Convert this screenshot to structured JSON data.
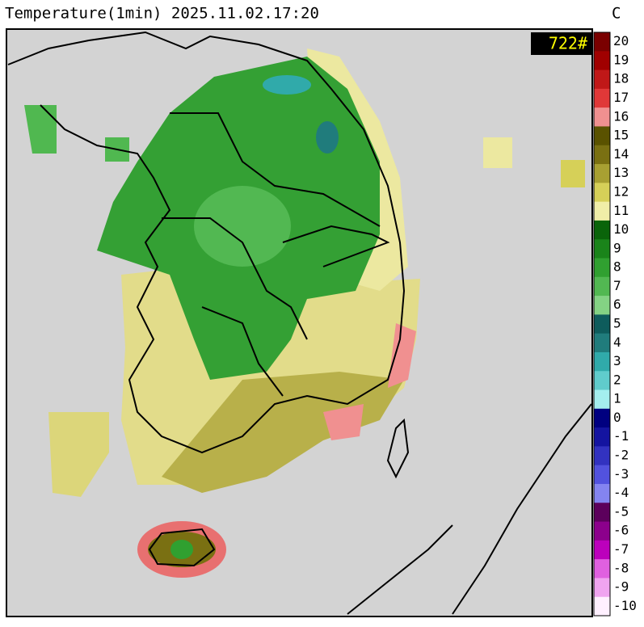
{
  "title": "Temperature(1min) 2025.11.02.17:20",
  "badge": "722#",
  "legend": {
    "unit": "C",
    "labels": [
      20,
      19,
      18,
      17,
      16,
      15,
      14,
      13,
      12,
      11,
      10,
      9,
      8,
      7,
      6,
      5,
      4,
      3,
      2,
      1,
      0,
      -1,
      -2,
      -3,
      -4,
      -5,
      -6,
      -7,
      -8,
      -9,
      -10
    ],
    "colors": [
      "#7a0000",
      "#a00000",
      "#c01818",
      "#e03838",
      "#f09090",
      "#5a5200",
      "#7a7012",
      "#a8a032",
      "#d6d058",
      "#f0eea8",
      "#0a640a",
      "#1a841a",
      "#30a030",
      "#52b852",
      "#84d284",
      "#0e5c5c",
      "#207c7c",
      "#30aaaa",
      "#60cccc",
      "#a4eeee",
      "#000080",
      "#1414a0",
      "#3232c0",
      "#5252de",
      "#8484f0",
      "#5c005c",
      "#8c008c",
      "#bc00bc",
      "#e060e0",
      "#f0a4f0",
      "#fff0ff"
    ]
  }
}
